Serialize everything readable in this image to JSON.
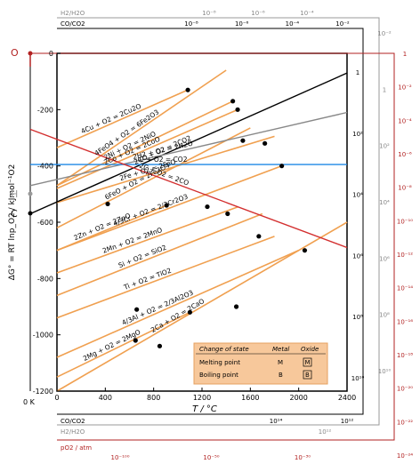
{
  "chart_data": {
    "type": "line",
    "title": "",
    "xlabel": "T / °C",
    "ylabel": "ΔG° = RT lnp_O2 / kJmol⁻¹O2",
    "xlim": [
      0,
      2400
    ],
    "ylim": [
      -1200,
      0
    ],
    "x_ticks": [
      "0",
      "400",
      "800",
      "1200",
      "1600",
      "2000",
      "2400"
    ],
    "y_ticks": [
      "0",
      "-200",
      "-400",
      "-600",
      "-800",
      "-1000",
      "-1200"
    ],
    "zero_kelvin_label": "0 K",
    "left_points": {
      "O": "O",
      "H": "H",
      "C": "C"
    },
    "series": [
      {
        "label": "4Cu + O2 = 2Cu2O",
        "color": "#f0a050",
        "x": [
          0,
          1083
        ],
        "y": [
          -335,
          -130
        ]
      },
      {
        "label": "4FeO4 + O2 = 6Fe2O3",
        "color": "#f0a050",
        "x": [
          0,
          1400
        ],
        "y": [
          -470,
          -60
        ]
      },
      {
        "label": "2Ni + O2 = 2NiO",
        "color": "#f0a050",
        "x": [
          0,
          1455
        ],
        "y": [
          -470,
          -170
        ]
      },
      {
        "label": "2Co + O2 = 2CoO",
        "color": "#f0a050",
        "x": [
          0,
          1495
        ],
        "y": [
          -480,
          -200
        ]
      },
      {
        "label": "6FeO + O2 = 2Fe3O4",
        "color": "#f0a050",
        "x": [
          0,
          1600
        ],
        "y": [
          -620,
          -265
        ]
      },
      {
        "label": "2Fe + O2 = 2FeO",
        "color": "#f0a050",
        "x": [
          0,
          1800
        ],
        "y": [
          -530,
          -295
        ]
      },
      {
        "label": "4/3Cr + O2 = 2/3Cr2O3",
        "color": "#f0a050",
        "x": [
          0,
          1860
        ],
        "y": [
          -700,
          -400
        ]
      },
      {
        "label": "2Zn + O2 = 2ZnO",
        "color": "#f0a050",
        "x": [
          0,
          907
        ],
        "y": [
          -700,
          -540
        ]
      },
      {
        "label": "2Mn + O2 = 2MnO",
        "color": "#f0a050",
        "x": [
          0,
          1500
        ],
        "y": [
          -780,
          -545
        ]
      },
      {
        "label": "Si + O2 = SiO2",
        "color": "#f0a050",
        "x": [
          0,
          1700
        ],
        "y": [
          -860,
          -570
        ]
      },
      {
        "label": "Ti + O2 = TiO2",
        "color": "#f0a050",
        "x": [
          0,
          1800
        ],
        "y": [
          -940,
          -650
        ]
      },
      {
        "label": "4/3Al + O2 = 2/3Al2O3",
        "color": "#f0a050",
        "x": [
          0,
          2000
        ],
        "y": [
          -1080,
          -700
        ]
      },
      {
        "label": "2Ca + O2 = 2CaO",
        "color": "#f0a050",
        "x": [
          0,
          2400
        ],
        "y": [
          -1200,
          -600
        ]
      },
      {
        "label": "2Mg + O2 = 2MgO",
        "color": "#f0a050",
        "x": [
          0,
          1100
        ],
        "y": [
          -1150,
          -920
        ]
      },
      {
        "label": "2CO + O2 = 2CO2",
        "color": "#000000",
        "x": [
          -273,
          2400
        ],
        "y": [
          -570,
          -70
        ]
      },
      {
        "label": "2H2 + O2 = 2H2O",
        "color": "#888888",
        "x": [
          -273,
          2400
        ],
        "y": [
          -470,
          -210
        ]
      },
      {
        "label": "C + O2 = CO2",
        "color": "#1e88e5",
        "x": [
          -273,
          2400
        ],
        "y": [
          -395,
          -395
        ]
      },
      {
        "label": "2C + O2 = 2CO",
        "color": "#d32f2f",
        "x": [
          -273,
          2400
        ],
        "y": [
          -270,
          -690
        ]
      }
    ],
    "legend": {
      "header": [
        "Change of state",
        "Metal",
        "Oxide"
      ],
      "rows": [
        [
          "Melting point",
          "M",
          "M"
        ],
        [
          "Boiling point",
          "B",
          "B"
        ]
      ],
      "position": "bottom-right"
    },
    "scale_labels": {
      "h2_h2o_top": "H2/H2O",
      "co_co2_top": "CO/CO2",
      "co_co2_bottom": "CO/CO2",
      "h2_h2o_bottom": "H2/H2O",
      "p_o2": "pO2 / atm",
      "h2_top_ticks": [
        "10⁻⁸",
        "10⁻⁶",
        "10⁻⁴"
      ],
      "co_top_ticks": [
        "10⁻⁸",
        "10⁻⁶",
        "10⁻⁴",
        "10⁻²"
      ],
      "co_right_ticks": [
        "1",
        "10²",
        "10⁴",
        "10⁶",
        "10⁸",
        "10¹⁰"
      ],
      "h2_right_ticks": [
        "10⁻²",
        "1",
        "10²",
        "10⁴",
        "10⁶",
        "10⁸",
        "10¹⁰"
      ],
      "po2_right_ticks": [
        "1",
        "10⁻²",
        "10⁻⁴",
        "10⁻⁶",
        "10⁻⁸",
        "10⁻¹⁰",
        "10⁻¹²",
        "10⁻¹⁴",
        "10⁻¹⁶",
        "10⁻¹⁸",
        "10⁻²⁰",
        "10⁻²²",
        "10⁻²⁴"
      ],
      "co_bottom_ticks": [
        "10¹⁴",
        "10¹²"
      ],
      "h2_bottom_ticks": [
        "10¹²"
      ],
      "po2_bottom_ticks": [
        "10⁻¹⁰⁰",
        "10⁻⁵⁰",
        "10⁻³⁰"
      ]
    }
  }
}
